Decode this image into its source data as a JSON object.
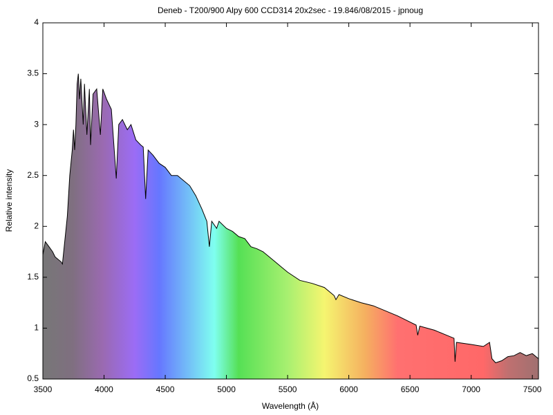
{
  "chart_data": {
    "type": "line",
    "title": "Deneb - T200/900 Alpy 600 CCD314 20x2sec -  19.846/08/2015 - jpnoug",
    "xlabel": "Wavelength (Å)",
    "ylabel": "Relative intensity",
    "x": [
      3500,
      3520,
      3550,
      3580,
      3600,
      3650,
      3660,
      3700,
      3720,
      3740,
      3750,
      3760,
      3770,
      3780,
      3790,
      3800,
      3810,
      3830,
      3840,
      3860,
      3880,
      3890,
      3910,
      3940,
      3970,
      3990,
      4020,
      4060,
      4100,
      4120,
      4150,
      4190,
      4220,
      4260,
      4300,
      4320,
      4340,
      4360,
      4400,
      4450,
      4500,
      4550,
      4600,
      4650,
      4700,
      4750,
      4800,
      4840,
      4861,
      4880,
      4920,
      4940,
      5000,
      5050,
      5100,
      5150,
      5200,
      5250,
      5300,
      5350,
      5400,
      5450,
      5500,
      5600,
      5700,
      5800,
      5880,
      5895,
      5920,
      6000,
      6100,
      6200,
      6300,
      6400,
      6500,
      6550,
      6563,
      6580,
      6700,
      6800,
      6860,
      6868,
      6880,
      7000,
      7100,
      7150,
      7170,
      7200,
      7250,
      7300,
      7350,
      7400,
      7450,
      7500,
      7550
    ],
    "series": [
      {
        "color": "#000000",
        "values": [
          1.72,
          1.85,
          1.8,
          1.75,
          1.7,
          1.65,
          1.63,
          2.1,
          2.5,
          2.75,
          2.95,
          2.75,
          3.0,
          3.4,
          3.5,
          3.25,
          3.45,
          3.0,
          3.4,
          2.9,
          3.35,
          2.8,
          3.3,
          3.35,
          2.9,
          3.35,
          3.25,
          3.15,
          2.47,
          3.0,
          3.05,
          2.95,
          3.0,
          2.85,
          2.8,
          2.78,
          2.27,
          2.75,
          2.7,
          2.62,
          2.58,
          2.5,
          2.5,
          2.45,
          2.4,
          2.3,
          2.17,
          2.05,
          1.8,
          2.05,
          1.98,
          2.05,
          1.98,
          1.95,
          1.9,
          1.88,
          1.8,
          1.78,
          1.75,
          1.7,
          1.65,
          1.6,
          1.55,
          1.47,
          1.44,
          1.4,
          1.32,
          1.28,
          1.33,
          1.29,
          1.25,
          1.22,
          1.17,
          1.12,
          1.06,
          1.03,
          0.93,
          1.02,
          0.98,
          0.93,
          0.9,
          0.67,
          0.86,
          0.84,
          0.82,
          0.86,
          0.7,
          0.66,
          0.68,
          0.72,
          0.73,
          0.76,
          0.73,
          0.75,
          0.7
        ]
      }
    ],
    "xlim": [
      3500,
      7550
    ],
    "xticks": [
      3500,
      4000,
      4500,
      5000,
      5500,
      6000,
      6500,
      7000,
      7500
    ],
    "ylim": [
      0.5,
      4
    ],
    "yticks": [
      0.5,
      1,
      1.5,
      2,
      2.5,
      3,
      3.5,
      4
    ]
  }
}
